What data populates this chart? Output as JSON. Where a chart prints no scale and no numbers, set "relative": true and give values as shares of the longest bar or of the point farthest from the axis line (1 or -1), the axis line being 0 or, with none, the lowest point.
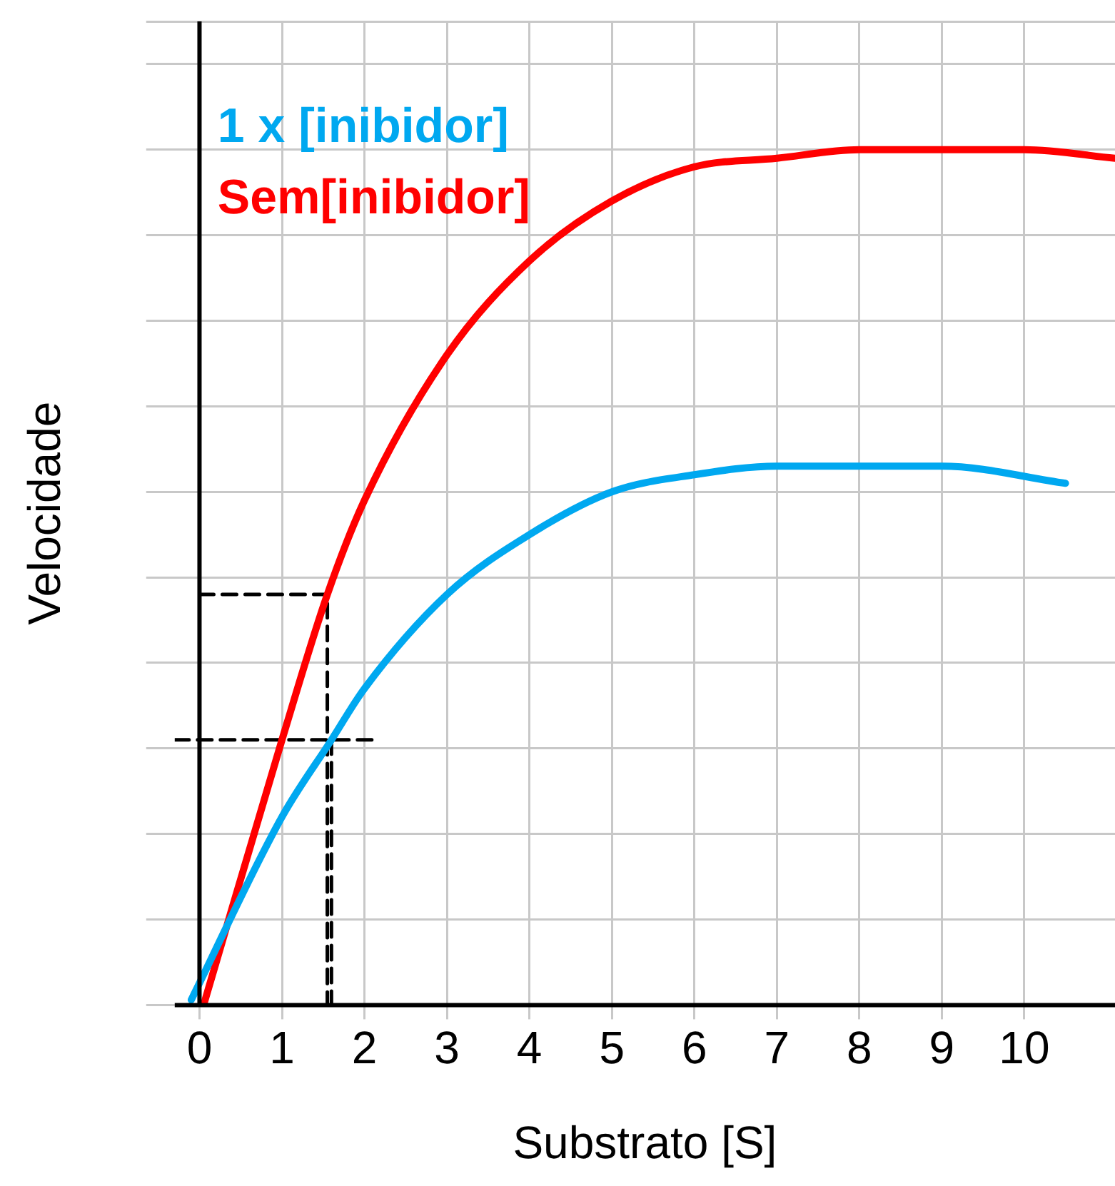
{
  "chart_data": {
    "type": "line",
    "xlabel": "Substrato [S]",
    "ylabel": "Velocidade",
    "relative": true,
    "xlim": [
      -0.3,
      11.1
    ],
    "xticks": [
      0,
      1,
      2,
      3,
      4,
      5,
      6,
      7,
      8,
      9,
      10
    ],
    "grid": true,
    "legend": "top left",
    "marker": "none",
    "series": [
      {
        "name": "1 x [inibidor]",
        "color": "#00a8f0",
        "x": [
          -0.1,
          1,
          1.6,
          2,
          3,
          4,
          5,
          6,
          7,
          8,
          9,
          10.5
        ],
        "values": [
          0.006,
          0.22,
          0.31,
          0.37,
          0.48,
          0.55,
          0.6,
          0.62,
          0.63,
          0.63,
          0.63,
          0.61
        ]
      },
      {
        "name": "Sem[inibidor]",
        "color": "#ff0000",
        "x": [
          0.05,
          1,
          1.55,
          2,
          3,
          4,
          5,
          6,
          7,
          8,
          9,
          10,
          11.1
        ],
        "values": [
          0,
          0.31,
          0.48,
          0.59,
          0.76,
          0.87,
          0.94,
          0.98,
          0.99,
          1,
          1,
          1,
          0.99
        ]
      },
      {
        "color": "#000000",
        "line_style": "dashed",
        "x": [
          0,
          1.55,
          1.55
        ],
        "values": [
          0.48,
          0.48,
          0
        ]
      },
      {
        "color": "#000000",
        "line_style": "dashed",
        "x": [
          -0.3,
          2.1
        ],
        "values": [
          0.31,
          0.31
        ]
      },
      {
        "color": "#000000",
        "line_style": "dashed",
        "x": [
          1.6,
          1.6
        ],
        "values": [
          0.31,
          0
        ]
      }
    ]
  }
}
